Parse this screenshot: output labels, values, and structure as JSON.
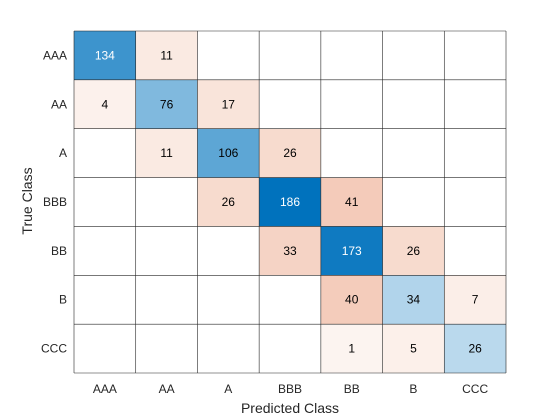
{
  "chart_data": {
    "type": "heatmap",
    "title": "",
    "xlabel": "Predicted Class",
    "ylabel": "True Class",
    "row_labels": [
      "AAA",
      "AA",
      "A",
      "BBB",
      "BB",
      "B",
      "CCC"
    ],
    "col_labels": [
      "AAA",
      "AA",
      "A",
      "BBB",
      "BB",
      "B",
      "CCC"
    ],
    "values": [
      [
        134,
        11,
        null,
        null,
        null,
        null,
        null
      ],
      [
        4,
        76,
        17,
        null,
        null,
        null,
        null
      ],
      [
        null,
        11,
        106,
        26,
        null,
        null,
        null
      ],
      [
        null,
        null,
        26,
        186,
        41,
        null,
        null
      ],
      [
        null,
        null,
        null,
        33,
        173,
        26,
        null
      ],
      [
        null,
        null,
        null,
        null,
        40,
        34,
        7
      ],
      [
        null,
        null,
        null,
        null,
        1,
        5,
        26
      ]
    ],
    "grid": true
  },
  "colors": {
    "diagonal": "#0072bd",
    "off_diagonal": "#d95319",
    "grid_line": "#262626",
    "text_dark": "#000000",
    "text_light": "#ffffff"
  }
}
